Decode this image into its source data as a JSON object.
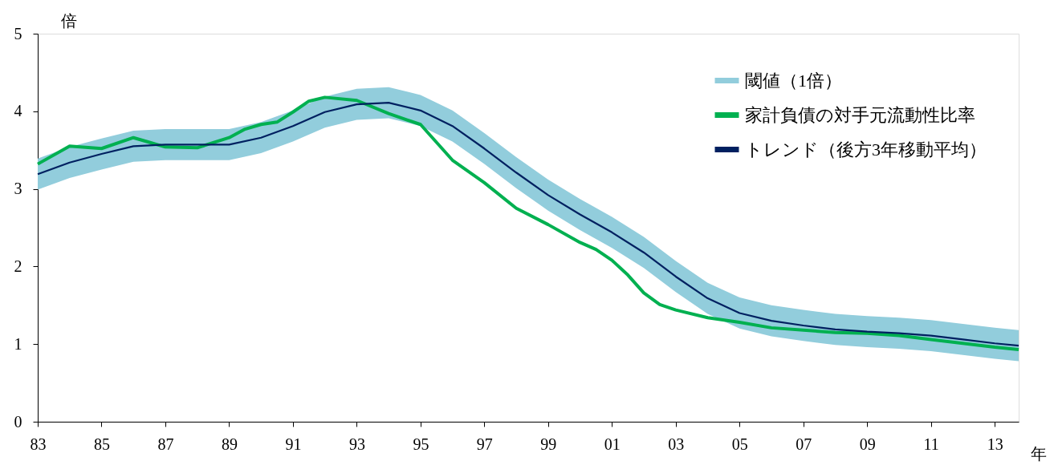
{
  "chart_data": {
    "type": "line",
    "xlabel": "年",
    "ylabel": "倍",
    "x": [
      1983,
      1984,
      1985,
      1986,
      1987,
      1988,
      1989,
      1990,
      1991,
      1992,
      1993,
      1994,
      1995,
      1996,
      1997,
      1998,
      1999,
      2000,
      2001,
      2002,
      2003,
      2004,
      2005,
      2006,
      2007,
      2008,
      2009,
      2010,
      2011,
      2012,
      2013,
      2013.75
    ],
    "series": [
      {
        "name": "閾値（1倍）",
        "color": "#92cddc",
        "lower": [
          2.99,
          3.14,
          3.25,
          3.35,
          3.37,
          3.37,
          3.37,
          3.46,
          3.61,
          3.79,
          3.89,
          3.91,
          3.81,
          3.61,
          3.32,
          3.01,
          2.72,
          2.47,
          2.24,
          1.98,
          1.67,
          1.39,
          1.2,
          1.1,
          1.04,
          0.99,
          0.96,
          0.94,
          0.91,
          0.86,
          0.81,
          0.78
        ],
        "values": [
          null,
          null,
          null,
          null,
          null,
          null,
          null,
          null,
          null,
          null,
          null,
          null,
          null,
          null,
          null,
          null,
          null,
          null,
          null,
          null,
          null,
          null,
          null,
          null,
          null,
          null,
          null,
          null,
          null,
          null,
          null,
          null
        ],
        "upper": [
          3.39,
          3.54,
          3.65,
          3.75,
          3.77,
          3.77,
          3.77,
          3.86,
          4.01,
          4.19,
          4.29,
          4.31,
          4.21,
          4.01,
          3.72,
          3.41,
          3.12,
          2.87,
          2.64,
          2.38,
          2.07,
          1.79,
          1.6,
          1.5,
          1.44,
          1.39,
          1.36,
          1.34,
          1.31,
          1.26,
          1.21,
          1.18
        ]
      },
      {
        "name": "家計負債の対手元流動性比率",
        "color": "#00b050",
        "x": [
          1983,
          1984,
          1985,
          1986,
          1986.5,
          1987,
          1988,
          1989,
          1989.5,
          1990,
          1990.5,
          1991,
          1991.5,
          1992,
          1993,
          1994,
          1995,
          1995.5,
          1996,
          1997,
          1998,
          1999,
          2000,
          2000.5,
          2001,
          2001.5,
          2002,
          2002.5,
          2003,
          2004,
          2005,
          2006,
          2007,
          2008,
          2009,
          2010,
          2011,
          2012,
          2013,
          2013.75
        ],
        "values": [
          3.32,
          3.55,
          3.52,
          3.66,
          3.6,
          3.54,
          3.53,
          3.66,
          3.77,
          3.83,
          3.86,
          3.99,
          4.13,
          4.18,
          4.14,
          3.97,
          3.83,
          3.6,
          3.37,
          3.08,
          2.75,
          2.54,
          2.31,
          2.22,
          2.08,
          1.89,
          1.66,
          1.51,
          1.44,
          1.34,
          1.28,
          1.21,
          1.18,
          1.15,
          1.14,
          1.11,
          1.06,
          1.01,
          0.96,
          0.93
        ]
      },
      {
        "name": "トレンド（後方3年移動平均）",
        "type": "line",
        "color": "#002060",
        "values": [
          3.19,
          3.34,
          3.45,
          3.55,
          3.57,
          3.57,
          3.57,
          3.66,
          3.81,
          3.99,
          4.09,
          4.11,
          4.01,
          3.81,
          3.52,
          3.21,
          2.92,
          2.67,
          2.44,
          2.18,
          1.87,
          1.59,
          1.4,
          1.3,
          1.24,
          1.19,
          1.16,
          1.14,
          1.11,
          1.06,
          1.01,
          0.98
        ]
      }
    ],
    "xlim": [
      1983,
      2013.75
    ],
    "xticks": [
      {
        "value": 1983,
        "label": "83"
      },
      {
        "value": 1985,
        "label": "85"
      },
      {
        "value": 1987,
        "label": "87"
      },
      {
        "value": 1989,
        "label": "89"
      },
      {
        "value": 1991,
        "label": "91"
      },
      {
        "value": 1993,
        "label": "93"
      },
      {
        "value": 1995,
        "label": "95"
      },
      {
        "value": 1997,
        "label": "97"
      },
      {
        "value": 1999,
        "label": "99"
      },
      {
        "value": 2001,
        "label": "01"
      },
      {
        "value": 2003,
        "label": "03"
      },
      {
        "value": 2005,
        "label": "05"
      },
      {
        "value": 2007,
        "label": "07"
      },
      {
        "value": 2009,
        "label": "09"
      },
      {
        "value": 2011,
        "label": "11"
      },
      {
        "value": 2013,
        "label": "13"
      }
    ],
    "ylim": [
      0,
      5
    ],
    "yticks": [
      0,
      1,
      2,
      3,
      4,
      5
    ],
    "legend": "top right",
    "grid": false
  }
}
